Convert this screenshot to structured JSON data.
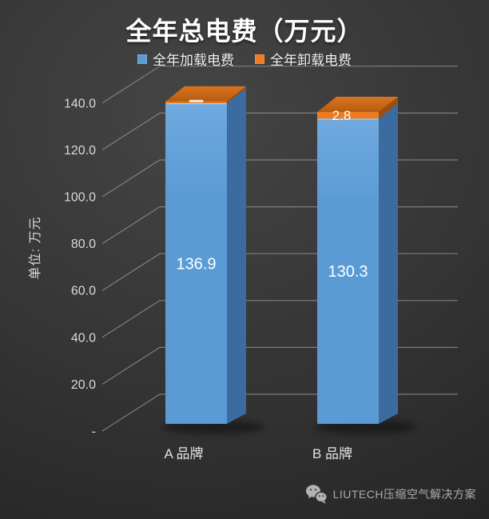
{
  "title": "全年总电费（万元）",
  "legend": [
    {
      "label": "全年加载电费",
      "color": "#5B9BD5"
    },
    {
      "label": "全年卸载电费",
      "color": "#EE7B20"
    }
  ],
  "y_axis": {
    "title": "单位: 万元",
    "ticks": [
      "140.0",
      "120.0",
      "100.0",
      "80.0",
      "60.0",
      "40.0",
      "20.0",
      "-"
    ],
    "max": 140,
    "interval": 20
  },
  "x_axis": {
    "categories": [
      "A 品牌",
      "B 品牌"
    ]
  },
  "chart_data": {
    "type": "bar",
    "subtype": "3d-stacked-column",
    "title": "全年总电费（万元）",
    "categories": [
      "A 品牌",
      "B 品牌"
    ],
    "series": [
      {
        "name": "全年加载电费",
        "color": "#5B9BD5",
        "values": [
          136.9,
          130.3
        ],
        "data_labels": [
          "136.9",
          "130.3"
        ]
      },
      {
        "name": "全年卸载电费",
        "color": "#EE7B20",
        "values": [
          0.7,
          2.8
        ],
        "data_labels": [
          "",
          "2.8"
        ],
        "label_note": "first label occluded by 3D bar top; value estimated from bar height"
      }
    ],
    "ylabel": "单位: 万元",
    "ylim": [
      0,
      140
    ],
    "grid": true,
    "legend_position": "top"
  },
  "watermark": {
    "icon": "wechat-icon",
    "text": "LIUTECH压缩空气解决方案"
  },
  "colors": {
    "bg-center": "#454545",
    "bg-edge": "#1d1d1d",
    "title-text": "#ffffff",
    "legend-text": "#f2f2f2",
    "tick-text": "#d9d9d9",
    "category-text": "#e3e3e3",
    "data-label-text": "#ffffff",
    "grid-line": "#9a9a9a",
    "blue-front": "#5B9BD5",
    "blue-front-light": "#6FA9DF",
    "blue-side": "#3C6BA0",
    "orange-front": "#EE7B20",
    "orange-top-back": "#DA7420",
    "orange-top-front": "#B55C10",
    "orange-side": "#9E4E0E",
    "watermark-text": "#ababab",
    "watermark-icon": "#b3b3b3"
  }
}
